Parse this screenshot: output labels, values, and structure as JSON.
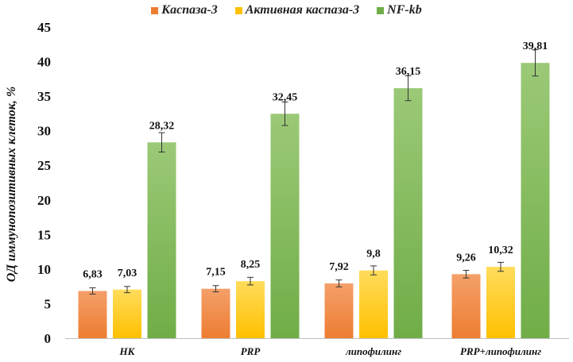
{
  "chart_data": {
    "type": "bar",
    "title": "",
    "xlabel": "",
    "ylabel": "ОД иммунопозитивных клеток, %",
    "ylim": [
      0,
      45
    ],
    "yticks": [
      0,
      5,
      10,
      15,
      20,
      25,
      30,
      35,
      40,
      45
    ],
    "grid": false,
    "legend_position": "top",
    "categories": [
      "НК",
      "PRP",
      "липофилинг",
      "PRP+липофилинг"
    ],
    "series": [
      {
        "name": "Каспаза-3",
        "color": "#ed7d31",
        "color_light": "#f4a06a",
        "values": [
          6.83,
          7.15,
          7.92,
          9.26
        ],
        "labels": [
          "6,83",
          "7,15",
          "7,92",
          "9,26"
        ],
        "errors": [
          0.45,
          0.45,
          0.5,
          0.55
        ]
      },
      {
        "name": "Активная каспаза-3",
        "color": "#ffc000",
        "color_light": "#ffdc5c",
        "values": [
          7.03,
          8.25,
          9.8,
          10.32
        ],
        "labels": [
          "7,03",
          "8,25",
          "9,8",
          "10,32"
        ],
        "errors": [
          0.45,
          0.55,
          0.65,
          0.65
        ]
      },
      {
        "name": "NF-kb",
        "color": "#70ad47",
        "color_light": "#9bc977",
        "values": [
          28.32,
          32.45,
          36.15,
          39.81
        ],
        "labels": [
          "28,32",
          "32,45",
          "36,15",
          "39,81"
        ],
        "errors": [
          1.4,
          1.7,
          1.8,
          1.9
        ]
      }
    ]
  }
}
